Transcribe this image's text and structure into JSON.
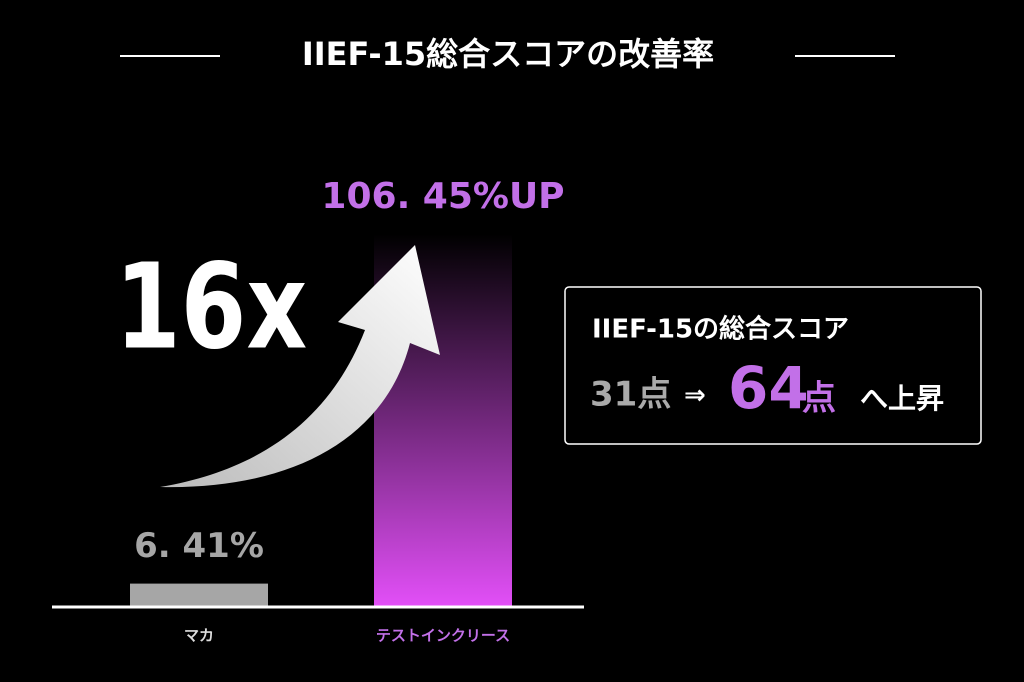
{
  "chart_data": {
    "type": "bar",
    "title": "IIEF-15総合スコアの改善率",
    "categories": [
      "マカ",
      "テストインクリース"
    ],
    "values": [
      6.41,
      106.45
    ],
    "value_labels": [
      "6. 41%",
      "106. 45%UP"
    ],
    "colors": [
      "#a6a6a6",
      "#e24ff7"
    ],
    "annotation": "16x"
  },
  "info_box": {
    "heading": "IIEF-15の総合スコア",
    "from": "31点",
    "arrow": "⇒",
    "to_number": "64",
    "to_unit": "点",
    "suffix": "へ上昇"
  }
}
